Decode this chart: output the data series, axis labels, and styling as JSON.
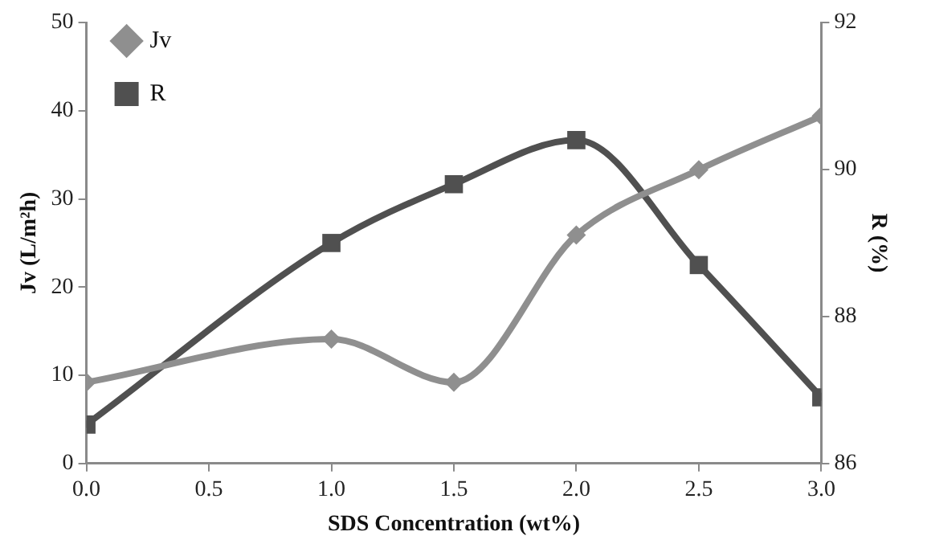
{
  "chart_data": {
    "type": "line",
    "xlabel": "SDS Concentration (wt%)",
    "ylabel": "Jv (L/m²h)",
    "y2label": "R (%)",
    "x": [
      0,
      1,
      1.5,
      2,
      2.5,
      3
    ],
    "series": [
      {
        "name": "Jv",
        "color": "#8f8f8f",
        "marker": "diamond",
        "values": [
          9.2,
          14.1,
          9.2,
          25.9,
          33.3,
          39.4
        ]
      },
      {
        "name": "R",
        "color": "#505050",
        "marker": "square",
        "axis": "y2",
        "values": [
          86.53,
          89.0,
          89.8,
          90.4,
          88.7,
          86.9
        ]
      }
    ],
    "xlim": [
      0,
      3
    ],
    "xticks": [
      {
        "value": 0,
        "label": "0.0"
      },
      0.5,
      {
        "value": 1,
        "label": "1.0"
      },
      1.5,
      {
        "value": 2,
        "label": "2.0"
      },
      2.5,
      {
        "value": 3,
        "label": "3.0"
      }
    ],
    "ylim": [
      0,
      50
    ],
    "yticks": [
      0,
      10,
      20,
      30,
      40,
      50
    ],
    "y2lim": [
      86,
      92
    ],
    "y2ticks": [
      86,
      88,
      90,
      92
    ],
    "grid": false,
    "legend": "top left",
    "line_style": "solid"
  }
}
